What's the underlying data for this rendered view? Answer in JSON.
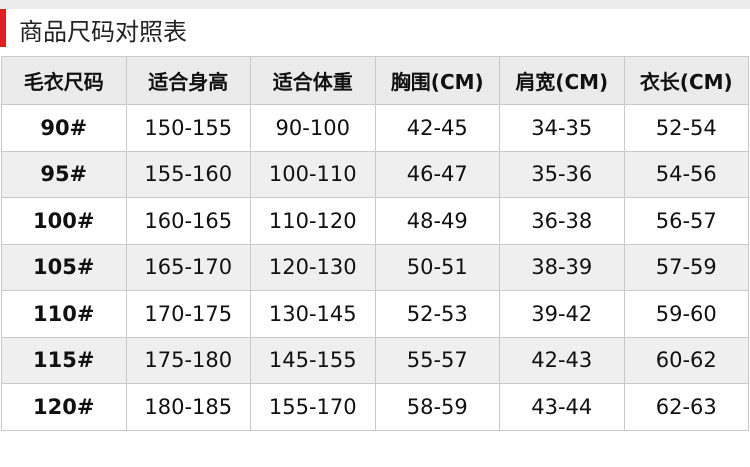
{
  "title": "商品尺码对照表",
  "colors": {
    "accent": "#e02020",
    "header_bg": "#ebebeb",
    "alt_row_bg": "#efefef"
  },
  "table": {
    "headers": [
      "毛衣尺码",
      "适合身高",
      "适合体重",
      "胸围(CM)",
      "肩宽(CM)",
      "衣长(CM)"
    ],
    "rows": [
      [
        "90#",
        "150-155",
        "90-100",
        "42-45",
        "34-35",
        "52-54"
      ],
      [
        "95#",
        "155-160",
        "100-110",
        "46-47",
        "35-36",
        "54-56"
      ],
      [
        "100#",
        "160-165",
        "110-120",
        "48-49",
        "36-38",
        "56-57"
      ],
      [
        "105#",
        "165-170",
        "120-130",
        "50-51",
        "38-39",
        "57-59"
      ],
      [
        "110#",
        "170-175",
        "130-145",
        "52-53",
        "39-42",
        "59-60"
      ],
      [
        "115#",
        "175-180",
        "145-155",
        "55-57",
        "42-43",
        "60-62"
      ],
      [
        "120#",
        "180-185",
        "155-170",
        "58-59",
        "43-44",
        "62-63"
      ]
    ]
  }
}
